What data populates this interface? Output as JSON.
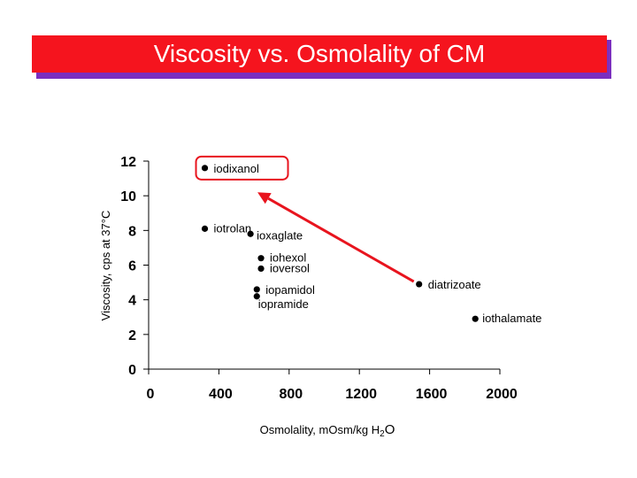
{
  "slide": {
    "title": "Viscosity vs. Osmolality of CM"
  },
  "chart_data": {
    "type": "scatter",
    "title": "Viscosity vs. Osmolality of CM",
    "xlabel": "Osmolality, mOsm/kg H",
    "xlabel_sub": "2",
    "xlabel_tail": "O",
    "ylabel": "Viscosity, cps at 37°C",
    "xlim": [
      0,
      2000
    ],
    "ylim": [
      0,
      12
    ],
    "xticks": [
      "0",
      "400",
      "800",
      "1200",
      "1600",
      "2000"
    ],
    "xtick_values": [
      0,
      400,
      800,
      1200,
      1600,
      2000
    ],
    "yticks": [
      "0",
      "2",
      "4",
      "6",
      "8",
      "10",
      "12"
    ],
    "ytick_values": [
      0,
      2,
      4,
      6,
      8,
      10,
      12
    ],
    "points": [
      {
        "name": "iodixanol",
        "x": 320,
        "y": 11.6
      },
      {
        "name": "iotrolan",
        "x": 320,
        "y": 8.1
      },
      {
        "name": "ioxaglate",
        "x": 580,
        "y": 7.8
      },
      {
        "name": "iohexol",
        "x": 640,
        "y": 6.4
      },
      {
        "name": "ioversol",
        "x": 640,
        "y": 5.8
      },
      {
        "name": "iopamidol",
        "x": 616,
        "y": 4.6
      },
      {
        "name": "iopramide",
        "x": 616,
        "y": 4.2
      },
      {
        "name": "diatrizoate",
        "x": 1540,
        "y": 4.9
      },
      {
        "name": "iothalamate",
        "x": 1860,
        "y": 2.9
      }
    ],
    "annotations": [
      {
        "type": "arrow",
        "from_point": "diatrizoate",
        "to": {
          "x": 620,
          "y": 10.2
        }
      },
      {
        "type": "highlight-box",
        "around_point": "iodixanol"
      }
    ],
    "colors": {
      "title_bg": "#f5141e",
      "title_shadow": "#7b2fbf",
      "title_text": "#ffffff",
      "highlight": "#e8141e",
      "points": "#000000"
    },
    "grid": false,
    "legend": "none"
  }
}
